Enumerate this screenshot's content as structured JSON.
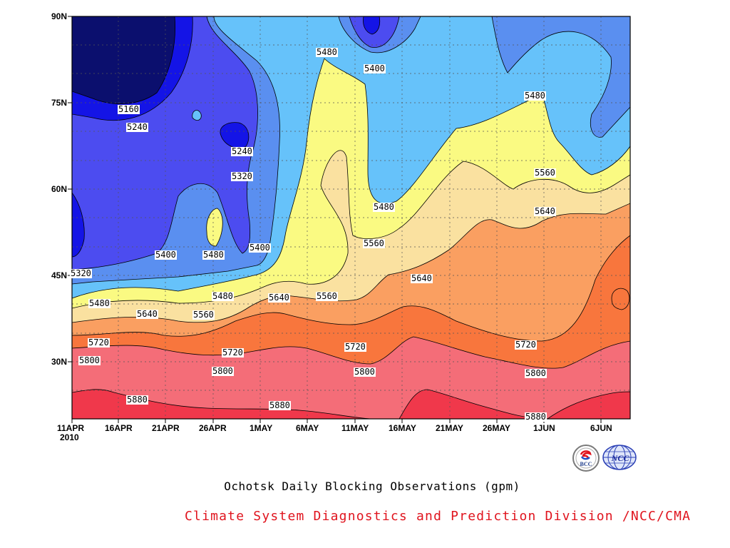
{
  "chart_data": {
    "type": "heatmap",
    "subtype": "filled-contour (Hovmoller, time vs latitude)",
    "caption": "Ochotsk Daily Blocking Observations (gpm)",
    "credit": "Climate System Diagnostics and Prediction Division /NCC/CMA",
    "x_ticks": [
      "11APR",
      "16APR",
      "21APR",
      "26APR",
      "1MAY",
      "6MAY",
      "11MAY",
      "16MAY",
      "21MAY",
      "26MAY",
      "1JUN",
      "6JUN"
    ],
    "x_year": "2010",
    "x_range": [
      "2010-04-11",
      "2010-06-09"
    ],
    "y_ticks": [
      "30N",
      "45N",
      "60N",
      "75N",
      "90N"
    ],
    "ylim": [
      20,
      90
    ],
    "contour_levels": [
      5160,
      5240,
      5320,
      5400,
      5480,
      5560,
      5640,
      5720,
      5800,
      5880
    ],
    "contour_labels": [
      {
        "text": "5160",
        "date": "2010-04-17",
        "lat": 74
      },
      {
        "text": "5240",
        "date": "2010-04-18",
        "lat": 71.5
      },
      {
        "text": "5240",
        "date": "2010-04-29",
        "lat": 67
      },
      {
        "text": "5320",
        "date": "2010-04-29",
        "lat": 62.7
      },
      {
        "text": "5400",
        "date": "2010-04-21",
        "lat": 48
      },
      {
        "text": "5480",
        "date": "2010-04-26",
        "lat": 48
      },
      {
        "text": "5400",
        "date": "2010-05-01",
        "lat": 49
      },
      {
        "text": "5320",
        "date": "2010-04-11",
        "lat": 45.3
      },
      {
        "text": "5480",
        "date": "2010-04-14",
        "lat": 39.9
      },
      {
        "text": "5480",
        "date": "2010-04-27",
        "lat": 41.1
      },
      {
        "text": "5640",
        "date": "2010-05-03",
        "lat": 40.9
      },
      {
        "text": "5560",
        "date": "2010-05-08",
        "lat": 41.4
      },
      {
        "text": "5640",
        "date": "2010-04-19",
        "lat": 37.2
      },
      {
        "text": "5560",
        "date": "2010-04-26",
        "lat": 37.1
      },
      {
        "text": "5720",
        "date": "2010-04-14",
        "lat": 33.1
      },
      {
        "text": "5720",
        "date": "2010-04-29",
        "lat": 31.6
      },
      {
        "text": "5800",
        "date": "2010-04-13",
        "lat": 30.2
      },
      {
        "text": "5800",
        "date": "2010-04-28",
        "lat": 28.3
      },
      {
        "text": "5880",
        "date": "2010-04-18",
        "lat": 23.1
      },
      {
        "text": "5880",
        "date": "2010-05-04",
        "lat": 21.3
      },
      {
        "text": "5480",
        "date": "2010-05-08",
        "lat": 84.6
      },
      {
        "text": "5400",
        "date": "2010-05-13",
        "lat": 82
      },
      {
        "text": "5480",
        "date": "2010-05-15",
        "lat": 56.8
      },
      {
        "text": "5560",
        "date": "2010-05-14",
        "lat": 47.2
      },
      {
        "text": "5640",
        "date": "2010-05-19",
        "lat": 44.2
      },
      {
        "text": "5720",
        "date": "2010-05-11",
        "lat": 32.8
      },
      {
        "text": "5800",
        "date": "2010-05-11",
        "lat": 28.2
      },
      {
        "text": "5480",
        "date": "2010-06-01",
        "lat": 75.7
      },
      {
        "text": "5560",
        "date": "2010-06-01",
        "lat": 62.1
      },
      {
        "text": "5640",
        "date": "2010-06-01",
        "lat": 55.3
      },
      {
        "text": "5720",
        "date": "2010-05-30",
        "lat": 32.9
      },
      {
        "text": "5800",
        "date": "2010-05-31",
        "lat": 27.8
      },
      {
        "text": "5880",
        "date": "2010-05-31",
        "lat": 20.1
      }
    ],
    "fill_colors": {
      "below_5160": "#0b0f6e",
      "5160_5240": "#1414e6",
      "5240_5320": "#4c4cf0",
      "5320_5400": "#5a8ff0",
      "5400_5480": "#66c2fa",
      "5480_5560": "#fafa82",
      "5560_5640": "#fae1a0",
      "5640_5720": "#fa9f61",
      "5720_5800": "#f8763d",
      "5800_5880": "#f46d78",
      "above_5880": "#f0384b"
    }
  },
  "logos": {
    "left_logo_text": "BCC",
    "right_logo_text": "NCC"
  }
}
